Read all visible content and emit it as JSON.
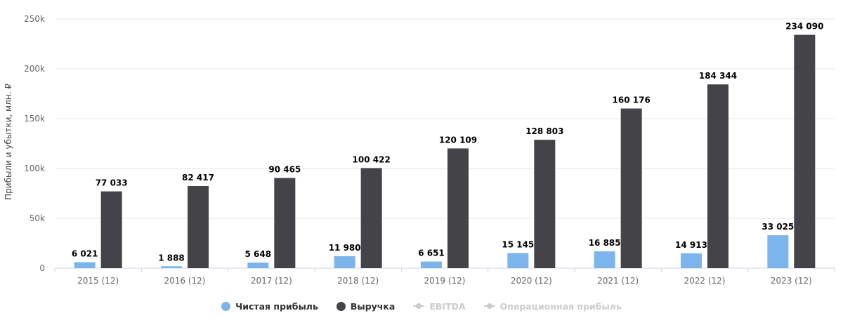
{
  "chart_data": {
    "type": "bar",
    "categories": [
      "2015 (12)",
      "2016 (12)",
      "2017 (12)",
      "2018 (12)",
      "2019 (12)",
      "2020 (12)",
      "2021 (12)",
      "2022 (12)",
      "2023 (12)"
    ],
    "series": [
      {
        "name": "Чистая прибыль",
        "color": "#7cb5ec",
        "values": [
          6021,
          1888,
          5648,
          11980,
          6651,
          15145,
          16885,
          14913,
          33025
        ],
        "labels": [
          "6 021",
          "1 888",
          "5 648",
          "11 980",
          "6 651",
          "15 145",
          "16 885",
          "14 913",
          "33 025"
        ]
      },
      {
        "name": "Выручка",
        "color": "#434348",
        "values": [
          77033,
          82417,
          90465,
          100422,
          120109,
          128803,
          160176,
          184344,
          234090
        ],
        "labels": [
          "77 033",
          "82 417",
          "90 465",
          "100 422",
          "120 109",
          "128 803",
          "160 176",
          "184 344",
          "234 090"
        ]
      }
    ],
    "hidden_series": [
      "EBITDA",
      "Операционная прибыль"
    ],
    "ylabel": "Прибыли и убытки, млн. ₽",
    "ylim": [
      0,
      250000
    ],
    "yticks": [
      0,
      50000,
      100000,
      150000,
      200000,
      250000
    ],
    "ytick_labels": [
      "0",
      "50k",
      "100k",
      "150k",
      "200k",
      "250k"
    ],
    "grid": true,
    "legend_position": "bottom"
  },
  "legend": {
    "items": [
      {
        "label": "Чистая прибыль",
        "color": "#7cb5ec",
        "icon": "circle-dot-icon"
      },
      {
        "label": "Выручка",
        "color": "#434348",
        "icon": "circle-dot-icon"
      },
      {
        "label": "EBITDA",
        "color": "#cccccc",
        "icon": "line-marker-icon"
      },
      {
        "label": "Операционная прибыль",
        "color": "#cccccc",
        "icon": "line-marker-icon"
      }
    ]
  }
}
